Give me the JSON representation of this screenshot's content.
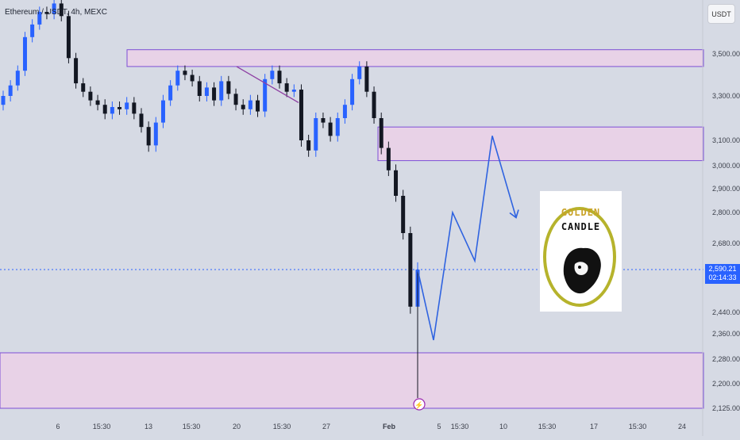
{
  "header": {
    "title": "Ethereum / USDT, 4h, MEXC"
  },
  "axis_chip": "USDT",
  "price_tag": {
    "price": "2,590.21",
    "countdown": "02:14:33"
  },
  "colors": {
    "background": "#d6dae4",
    "zone_fill": "#e8d2e7",
    "zone_edge": "#7d4fd6",
    "up": "#2962ff",
    "down": "#131722",
    "projection": "#2f63e0",
    "price_line": "#2962ff"
  },
  "logo": {
    "top": "GOLDEN",
    "bottom": "CANDLE",
    "icon": "lion-head-icon"
  },
  "chart_data": {
    "type": "candlestick",
    "y_ticks": [
      "3,500.00",
      "3,300.00",
      "3,100.00",
      "3,000.00",
      "2,900.00",
      "2,800.00",
      "2,680.00",
      "2,590.21",
      "2,440.00",
      "2,360.00",
      "2,280.00",
      "2,200.00",
      "2,125.00"
    ],
    "x_ticks": [
      "6",
      "15:30",
      "13",
      "15:30",
      "20",
      "15:30",
      "27",
      "Feb",
      "5",
      "15:30",
      "10",
      "15:30",
      "17",
      "15:30",
      "24"
    ],
    "current_price": 2590.21,
    "zones": [
      {
        "low": 3440,
        "high": 3520
      },
      {
        "low": 3020,
        "high": 3160
      },
      {
        "low": 2125,
        "high": 2300
      }
    ],
    "trendline": [
      3440,
      3270
    ],
    "projection": [
      2590,
      2340,
      2800,
      2620,
      3120,
      2780
    ],
    "candle_closes": [
      3300,
      3350,
      3420,
      3580,
      3640,
      3700,
      3690,
      3740,
      3680,
      3480,
      3360,
      3320,
      3280,
      3260,
      3220,
      3250,
      3240,
      3270,
      3220,
      3160,
      3080,
      3180,
      3280,
      3350,
      3420,
      3400,
      3370,
      3300,
      3340,
      3280,
      3370,
      3310,
      3260,
      3240,
      3280,
      3230,
      3380,
      3420,
      3360,
      3320,
      3330,
      3100,
      3060,
      3200,
      3180,
      3120,
      3200,
      3260,
      3380,
      3440,
      3320,
      3200,
      3070,
      2980,
      2870,
      2720,
      2460,
      2590
    ]
  }
}
